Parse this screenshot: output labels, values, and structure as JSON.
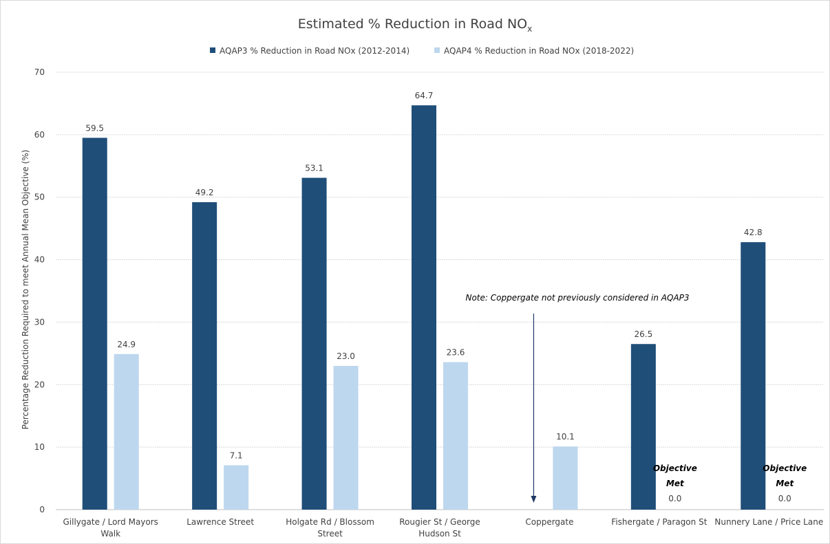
{
  "chart_data": {
    "type": "bar",
    "title_main": "Estimated % Reduction in Road NO",
    "title_sub": "x",
    "ylabel": "Percentage Reduction Required to meet Annual Mean Objective (%)",
    "xlabel": "",
    "ylim": [
      0,
      70
    ],
    "yticks": [
      "0",
      "10",
      "20",
      "30",
      "40",
      "50",
      "60",
      "70"
    ],
    "ytick_values": [
      0,
      10,
      20,
      30,
      40,
      50,
      60,
      70
    ],
    "grid": true,
    "legend_position": "top-center",
    "categories": [
      [
        "Gillygate / Lord Mayors",
        "Walk"
      ],
      [
        "Lawrence Street"
      ],
      [
        "Holgate Rd / Blossom",
        "Street"
      ],
      [
        "Rougier St / George",
        "Hudson St"
      ],
      [
        "Coppergate"
      ],
      [
        "Fishergate / Paragon St"
      ],
      [
        "Nunnery Lane / Price Lane"
      ]
    ],
    "series": [
      {
        "name": "AQAP3 % Reduction in Road NOx (2012-2014)",
        "color": "#1f4e79",
        "values": [
          59.5,
          49.2,
          53.1,
          64.7,
          null,
          26.5,
          42.8
        ],
        "labels": [
          "59.5",
          "49.2",
          "53.1",
          "64.7",
          "",
          "26.5",
          "42.8"
        ]
      },
      {
        "name": "AQAP4 % Reduction in Road NOx (2018-2022)",
        "color": "#bdd7ee",
        "values": [
          24.9,
          7.1,
          23.0,
          23.6,
          10.1,
          0.0,
          0.0
        ],
        "labels": [
          "24.9",
          "7.1",
          "23.0",
          "23.6",
          "10.1",
          "0.0",
          "0.0"
        ]
      }
    ],
    "annotations": {
      "note": "Note:  Coppergate not previously considered in AQAP3",
      "objective_met_line1": "Objective",
      "objective_met_line2": "Met"
    }
  }
}
